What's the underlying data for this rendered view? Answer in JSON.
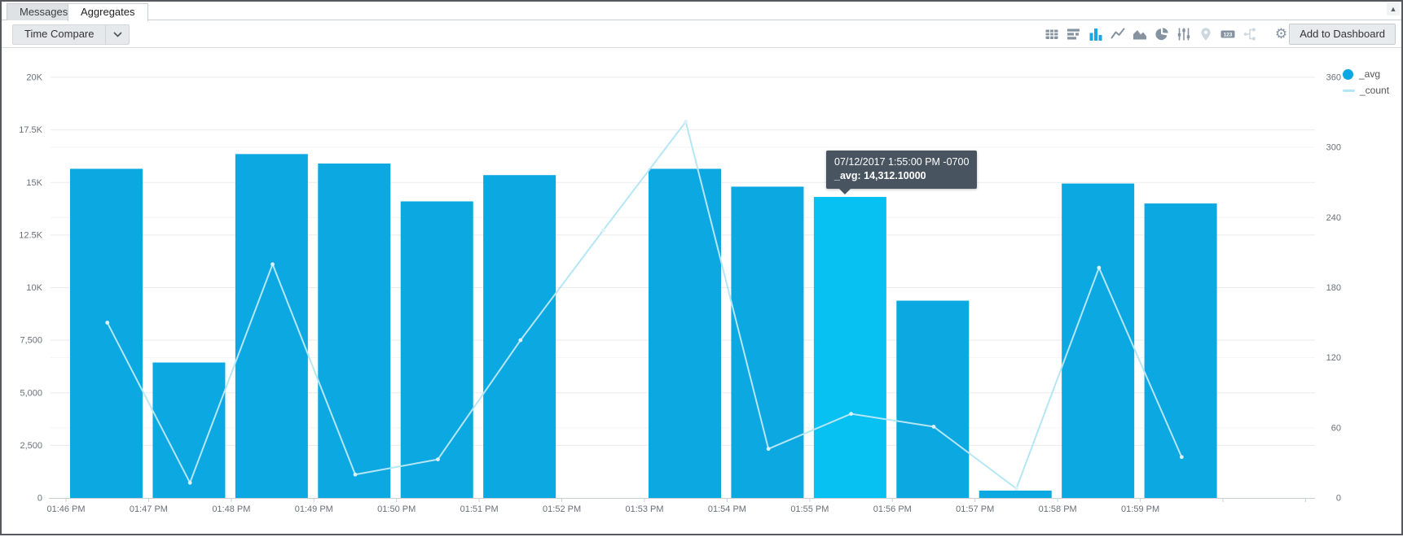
{
  "window": {
    "scroll_up_arrow": "▲"
  },
  "tabs": [
    {
      "label": "Messages",
      "active": false
    },
    {
      "label": "Aggregates",
      "active": true
    }
  ],
  "toolbar": {
    "time_compare_label": "Time Compare",
    "icons": [
      {
        "name": "table-chart",
        "state": "default"
      },
      {
        "name": "row-chart",
        "state": "default"
      },
      {
        "name": "bar-chart",
        "state": "active"
      },
      {
        "name": "line-chart",
        "state": "default"
      },
      {
        "name": "area-chart",
        "state": "default"
      },
      {
        "name": "pie-chart",
        "state": "default"
      },
      {
        "name": "sliders",
        "state": "default"
      },
      {
        "name": "map-pin",
        "state": "disabled"
      },
      {
        "name": "number-chart",
        "state": "default"
      },
      {
        "name": "flow-chart",
        "state": "disabled"
      },
      {
        "name": "settings-gear",
        "state": "default"
      }
    ],
    "add_to_dashboard_label": "Add to Dashboard"
  },
  "legend": [
    {
      "label": "_avg",
      "marker": "dot",
      "color": "#0ca8e1"
    },
    {
      "label": "_count",
      "marker": "line",
      "color": "#b5e6f5"
    }
  ],
  "tooltip": {
    "line1": "07/12/2017 1:55:00 PM -0700",
    "line2": "_avg: 14,312.10000"
  },
  "chart_data": {
    "type": "bar",
    "title": "",
    "categories": [
      "01:46 PM",
      "01:47 PM",
      "01:48 PM",
      "01:49 PM",
      "01:50 PM",
      "01:51 PM",
      "01:52 PM",
      "01:53 PM",
      "01:54 PM",
      "01:55 PM",
      "01:56 PM",
      "01:57 PM",
      "01:58 PM",
      "01:59 PM"
    ],
    "series": [
      {
        "name": "_avg",
        "type": "bar",
        "axis": "left",
        "color": "#0ca8e1",
        "highlight_color": "#06c1f2",
        "values": [
          15650,
          6440,
          16350,
          15900,
          14100,
          15350,
          null,
          15650,
          14800,
          14312.1,
          9380,
          350,
          14950,
          14000
        ]
      },
      {
        "name": "_count",
        "type": "line",
        "axis": "right",
        "color": "#b5e6f5",
        "dot_color": "#ddf1f9",
        "values": [
          150,
          13,
          200,
          20,
          33,
          135,
          229,
          322,
          42,
          72,
          61,
          8,
          197,
          35
        ]
      }
    ],
    "highlight_index": 9,
    "highlight_tooltip_value": 14312.1,
    "left_axis": {
      "range": [
        0,
        20000
      ],
      "tick_step": 2500,
      "tick_labels": [
        "0",
        "2,500",
        "5,000",
        "7,500",
        "10K",
        "12.5K",
        "15K",
        "17.5K",
        "20K"
      ]
    },
    "right_axis": {
      "range": [
        0,
        360
      ],
      "tick_step": 60,
      "tick_labels": [
        "0",
        "60",
        "120",
        "180",
        "240",
        "300",
        "360"
      ]
    },
    "grid": true,
    "legend_position": "top-right"
  }
}
